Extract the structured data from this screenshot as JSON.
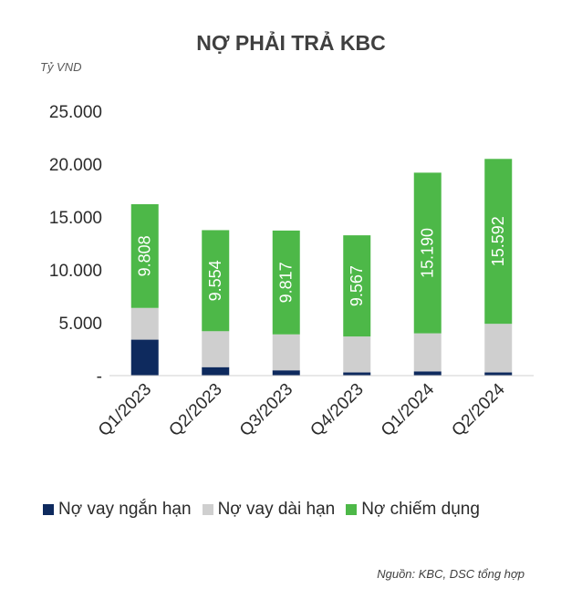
{
  "chart_data": {
    "type": "bar",
    "stacked": true,
    "title": "NỢ PHẢI TRẢ KBC",
    "unit_label": "Tỷ VND",
    "categories": [
      "Q1/2023",
      "Q2/2023",
      "Q3/2023",
      "Q4/2023",
      "Q1/2024",
      "Q2/2024"
    ],
    "series": [
      {
        "name": "Nợ vay ngắn hạn",
        "color": "#0e2a5e",
        "values": [
          3400,
          800,
          500,
          300,
          400,
          300
        ]
      },
      {
        "name": "Nợ vay dài hạn",
        "color": "#cfcfcf",
        "values": [
          3000,
          3400,
          3400,
          3400,
          3600,
          4600
        ]
      },
      {
        "name": "Nợ chiếm dụng",
        "color": "#4db848",
        "values": [
          9808,
          9554,
          9817,
          9567,
          15190,
          15592
        ]
      }
    ],
    "data_labels": [
      "9.808",
      "9.554",
      "9.817",
      "9.567",
      "15.190",
      "15.592"
    ],
    "ylim": [
      0,
      25000
    ],
    "yticks": [
      0,
      5000,
      10000,
      15000,
      20000,
      25000
    ],
    "ytick_labels": [
      "-",
      "5.000",
      "10.000",
      "15.000",
      "20.000",
      "25.000"
    ],
    "grid": false,
    "legend_position": "bottom",
    "source": "Nguồn: KBC, DSC tổng hợp"
  }
}
